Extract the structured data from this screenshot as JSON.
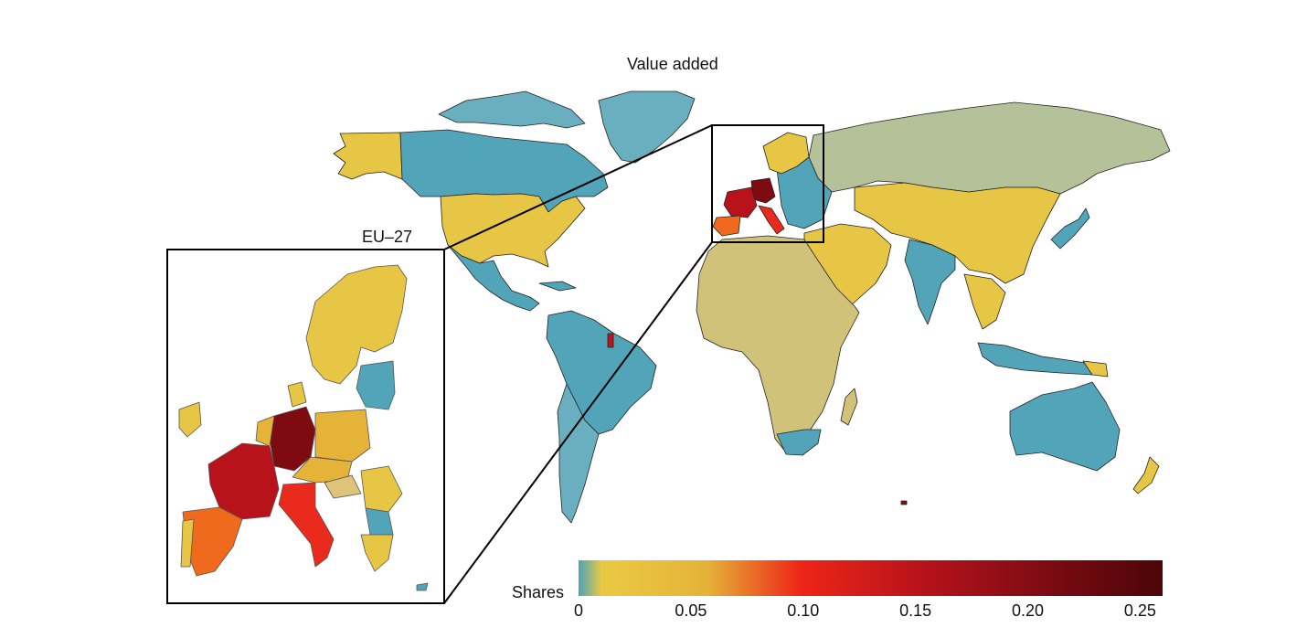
{
  "title": "Value added",
  "inset": {
    "label": "EU–27"
  },
  "legend": {
    "label": "Shares",
    "ticks": [
      "0",
      "0.05",
      "0.10",
      "0.15",
      "0.20",
      "0.25"
    ],
    "range": [
      0,
      0.26
    ],
    "colors": [
      "#4aa5b8",
      "#ebc944",
      "#e4b338",
      "#ee2518",
      "#b4121b",
      "#6f0a10",
      "#4c0508"
    ]
  },
  "regions": {
    "north_america": {
      "canada": "low",
      "usa": "mid",
      "alaska": "mid",
      "greenland": "low",
      "mexico": "low",
      "central_america": "low",
      "caribbean": "low"
    },
    "south_america": {
      "brazil": "low",
      "argentina_chile": "low",
      "french_guiana": "high"
    },
    "europe": {
      "germany": "very-high",
      "france": "high",
      "italy": "high",
      "spain": "mid-high",
      "other": "mid"
    },
    "africa": "olive",
    "russia": "sage",
    "asia": {
      "china": "mid",
      "india": "low",
      "middle_east": "mid",
      "japan": "low",
      "southeast_asia": "low"
    },
    "oceania": {
      "australia": "low",
      "new_zealand": "mid",
      "papua_new_guinea": "mid"
    }
  }
}
